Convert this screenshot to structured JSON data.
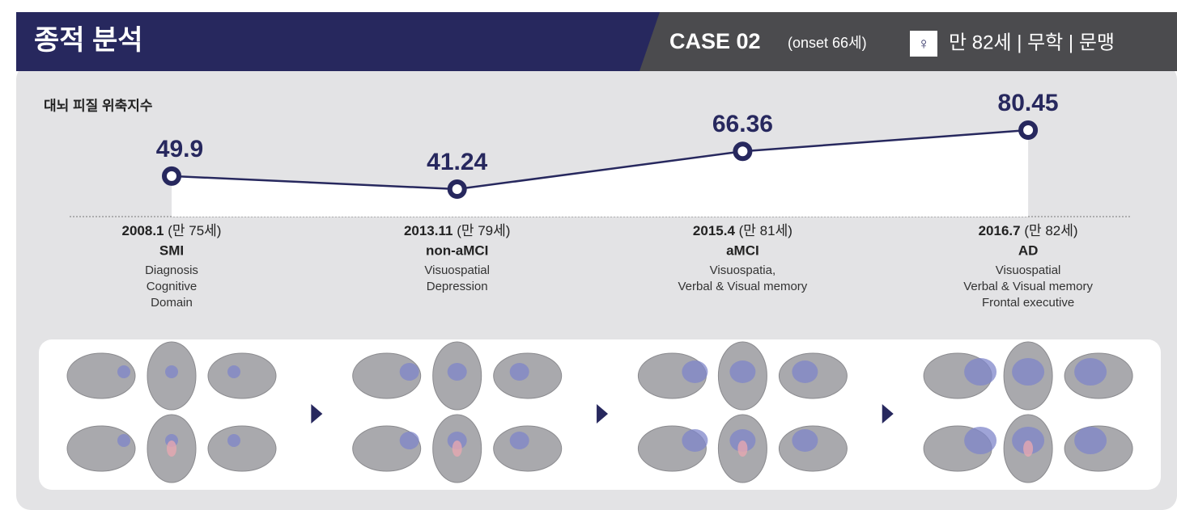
{
  "header": {
    "title": "종적 분석",
    "case": "CASE 02",
    "onset": "(onset 66세)",
    "sex": "♀",
    "profile": "만 82세 | 무학 | 문맹"
  },
  "chart_data": {
    "type": "line",
    "title": "대뇌 피질 위축지수",
    "color": "#27285e",
    "categories": [
      "2008.1",
      "2013.11",
      "2015.4",
      "2016.7"
    ],
    "ages": [
      "(만 75세)",
      "(만 79세)",
      "(만 81세)",
      "(만 82세)"
    ],
    "values": [
      49.9,
      41.24,
      66.36,
      80.45
    ]
  },
  "stages": [
    {
      "diagnosis": "SMI",
      "domains": [
        "Diagnosis",
        "Cognitive",
        "Domain"
      ]
    },
    {
      "diagnosis": "non-aMCI",
      "domains": [
        "Visuospatial",
        "Depression"
      ]
    },
    {
      "diagnosis": "aMCI",
      "domains": [
        "Visuospatia,",
        "Verbal & Visual memory"
      ]
    },
    {
      "diagnosis": "AD",
      "domains": [
        "Visuospatial",
        "Verbal & Visual memory",
        "Frontal executive"
      ]
    }
  ]
}
